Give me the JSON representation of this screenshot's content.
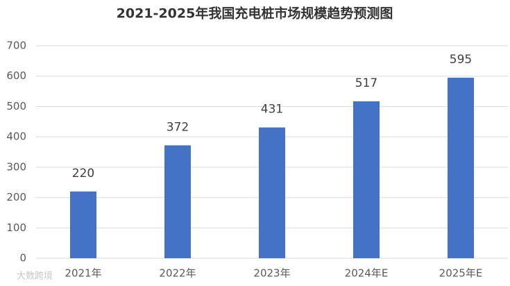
{
  "chart_data": {
    "type": "bar",
    "title": "2021-2025年我国充电桩市场规模趋势预测图",
    "categories": [
      "2021年",
      "2022年",
      "2023年",
      "2024年E",
      "2025年E"
    ],
    "values": [
      220,
      372,
      431,
      517,
      595
    ],
    "color": "#4472c4",
    "ylim": [
      0,
      700
    ],
    "yticks": [
      0,
      100,
      200,
      300,
      400,
      500,
      600,
      700
    ],
    "grid": true,
    "watermark": "大数跨境"
  }
}
